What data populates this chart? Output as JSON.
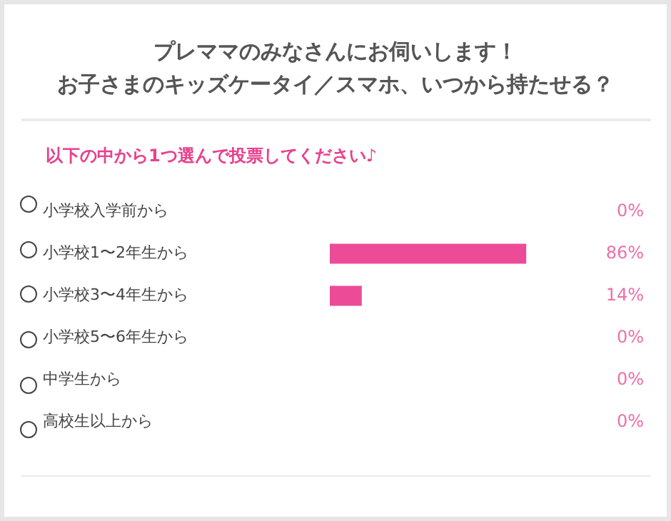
{
  "chart_data": {
    "type": "bar",
    "orientation": "horizontal",
    "title": "プレママのみなさんにお伺いします！お子さまのキッズケータイ／スマホ、いつから持たせる？",
    "subtitle": "以下の中から1つ選んで投票してください♪",
    "categories": [
      "小学校入学前から",
      "小学校1〜2年生から",
      "小学校3〜4年生から",
      "小学校5〜6年生から",
      "中学生から",
      "高校生以上から"
    ],
    "values": [
      0,
      86,
      14,
      0,
      0,
      0
    ],
    "value_labels": [
      "0%",
      "86%",
      "14%",
      "0%",
      "0%",
      "0%"
    ],
    "color": "#ec4c97",
    "grid": false,
    "legend": false,
    "tick_labels": "y"
  }
}
